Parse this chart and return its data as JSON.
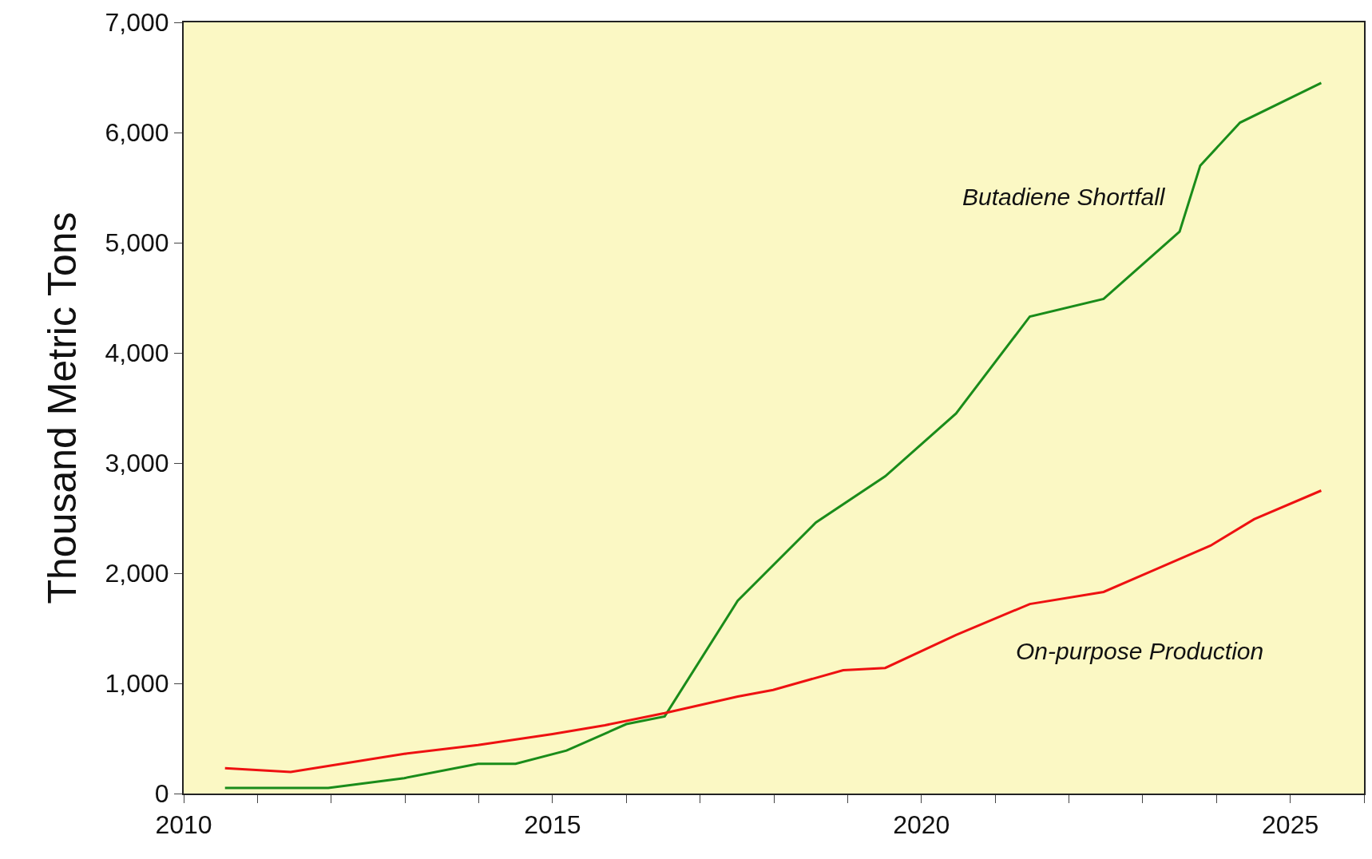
{
  "chart_data": {
    "type": "line",
    "ylabel": "Thousand Metric Tons",
    "series": [
      {
        "name": "Butadiene Shortfall",
        "color": "#1a8c1a",
        "x": [
          2010.56,
          2011.45,
          2011.96,
          2012.99,
          2013.99,
          2014.5,
          2015.19,
          2016.0,
          2016.52,
          2017.51,
          2018.57,
          2019.51,
          2020.47,
          2021.47,
          2022.47,
          2023.5,
          2023.78,
          2024.32,
          2025.42
        ],
        "values": [
          50,
          50,
          50,
          140,
          270,
          270,
          390,
          630,
          700,
          1750,
          2460,
          2880,
          3450,
          4330,
          4490,
          5100,
          5700,
          6090,
          6450
        ]
      },
      {
        "name": "On-purpose Production",
        "color": "#ee1111",
        "x": [
          2010.56,
          2011.45,
          2012.99,
          2013.99,
          2015.0,
          2015.71,
          2016.52,
          2017.51,
          2017.99,
          2018.94,
          2019.51,
          2020.47,
          2021.47,
          2022.47,
          2023.09,
          2023.92,
          2024.51,
          2025.42
        ],
        "values": [
          230,
          195,
          360,
          440,
          540,
          620,
          730,
          880,
          940,
          1120,
          1140,
          1440,
          1720,
          1830,
          2010,
          2250,
          2490,
          2750
        ]
      }
    ],
    "xlim": [
      2010,
      2026
    ],
    "xticks": [
      2010,
      {
        "value": 2011,
        "label": null
      },
      {
        "value": 2012,
        "label": null
      },
      {
        "value": 2013,
        "label": null
      },
      {
        "value": 2014,
        "label": null
      },
      2015,
      {
        "value": 2016,
        "label": null
      },
      {
        "value": 2017,
        "label": null
      },
      {
        "value": 2018,
        "label": null
      },
      {
        "value": 2019,
        "label": null
      },
      2020,
      {
        "value": 2021,
        "label": null
      },
      {
        "value": 2022,
        "label": null
      },
      {
        "value": 2023,
        "label": null
      },
      {
        "value": 2024,
        "label": null
      },
      2025,
      {
        "value": 2026,
        "label": null
      }
    ],
    "ylim": [
      0,
      7000
    ],
    "yticks": [
      {
        "value": 0,
        "label": "0"
      },
      {
        "value": 1000,
        "label": "1,000"
      },
      {
        "value": 2000,
        "label": "2,000"
      },
      {
        "value": 3000,
        "label": "3,000"
      },
      {
        "value": 4000,
        "label": "4,000"
      },
      {
        "value": 5000,
        "label": "5,000"
      },
      {
        "value": 6000,
        "label": "6,000"
      },
      {
        "value": 7000,
        "label": "7,000"
      }
    ],
    "grid": false,
    "legend": false,
    "marker": "none",
    "line_style": "solid"
  }
}
